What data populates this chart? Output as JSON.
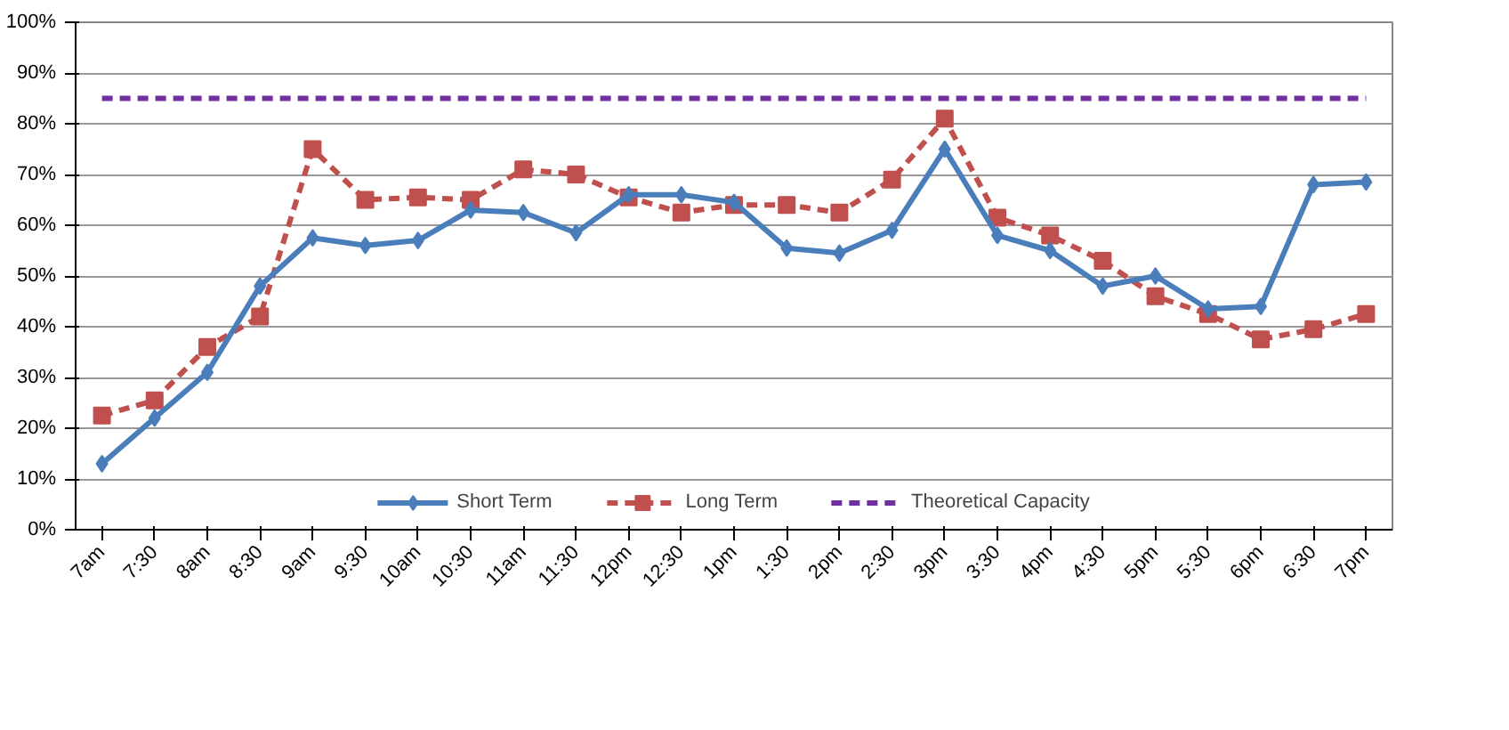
{
  "chart_data": {
    "type": "line",
    "categories": [
      "7am",
      "7:30",
      "8am",
      "8:30",
      "9am",
      "9:30",
      "10am",
      "10:30",
      "11am",
      "11:30",
      "12pm",
      "12:30",
      "1pm",
      "1:30",
      "2pm",
      "2:30",
      "3pm",
      "3:30",
      "4pm",
      "4:30",
      "5pm",
      "5:30",
      "6pm",
      "6:30",
      "7pm"
    ],
    "series": [
      {
        "name": "Short Term",
        "color": "#4a7ebb",
        "marker": "diamond",
        "line_style": "solid",
        "values": [
          13,
          22,
          31,
          48,
          57.5,
          56,
          57,
          63,
          62.5,
          58.5,
          66,
          66,
          64.5,
          55.5,
          54.5,
          59,
          75,
          58,
          55,
          48,
          50,
          43.5,
          44,
          68,
          68.5
        ]
      },
      {
        "name": "Long Term",
        "color": "#c0504d",
        "marker": "square",
        "line_style": "dashed",
        "values": [
          22.5,
          25.5,
          36,
          42,
          75,
          65,
          65.5,
          65,
          71,
          70,
          65.5,
          62.5,
          64,
          64,
          62.5,
          69,
          81,
          61.5,
          58,
          53,
          46,
          42.5,
          37.5,
          39.5,
          42.5
        ]
      },
      {
        "name": "Theoretical Capacity",
        "color": "#7030a0",
        "marker": "none",
        "line_style": "dashed",
        "values": [
          85,
          85,
          85,
          85,
          85,
          85,
          85,
          85,
          85,
          85,
          85,
          85,
          85,
          85,
          85,
          85,
          85,
          85,
          85,
          85,
          85,
          85,
          85,
          85,
          85
        ]
      }
    ],
    "ylim": [
      0,
      100
    ],
    "yticks": [
      {
        "value": 0,
        "label": "0%"
      },
      {
        "value": 10,
        "label": "10%"
      },
      {
        "value": 20,
        "label": "20%"
      },
      {
        "value": 30,
        "label": "30%"
      },
      {
        "value": 40,
        "label": "40%"
      },
      {
        "value": 50,
        "label": "50%"
      },
      {
        "value": 60,
        "label": "60%"
      },
      {
        "value": 70,
        "label": "70%"
      },
      {
        "value": 80,
        "label": "80%"
      },
      {
        "value": 90,
        "label": "90%"
      },
      {
        "value": 100,
        "label": "100%"
      }
    ],
    "grid": "y",
    "legend": "bottom"
  }
}
